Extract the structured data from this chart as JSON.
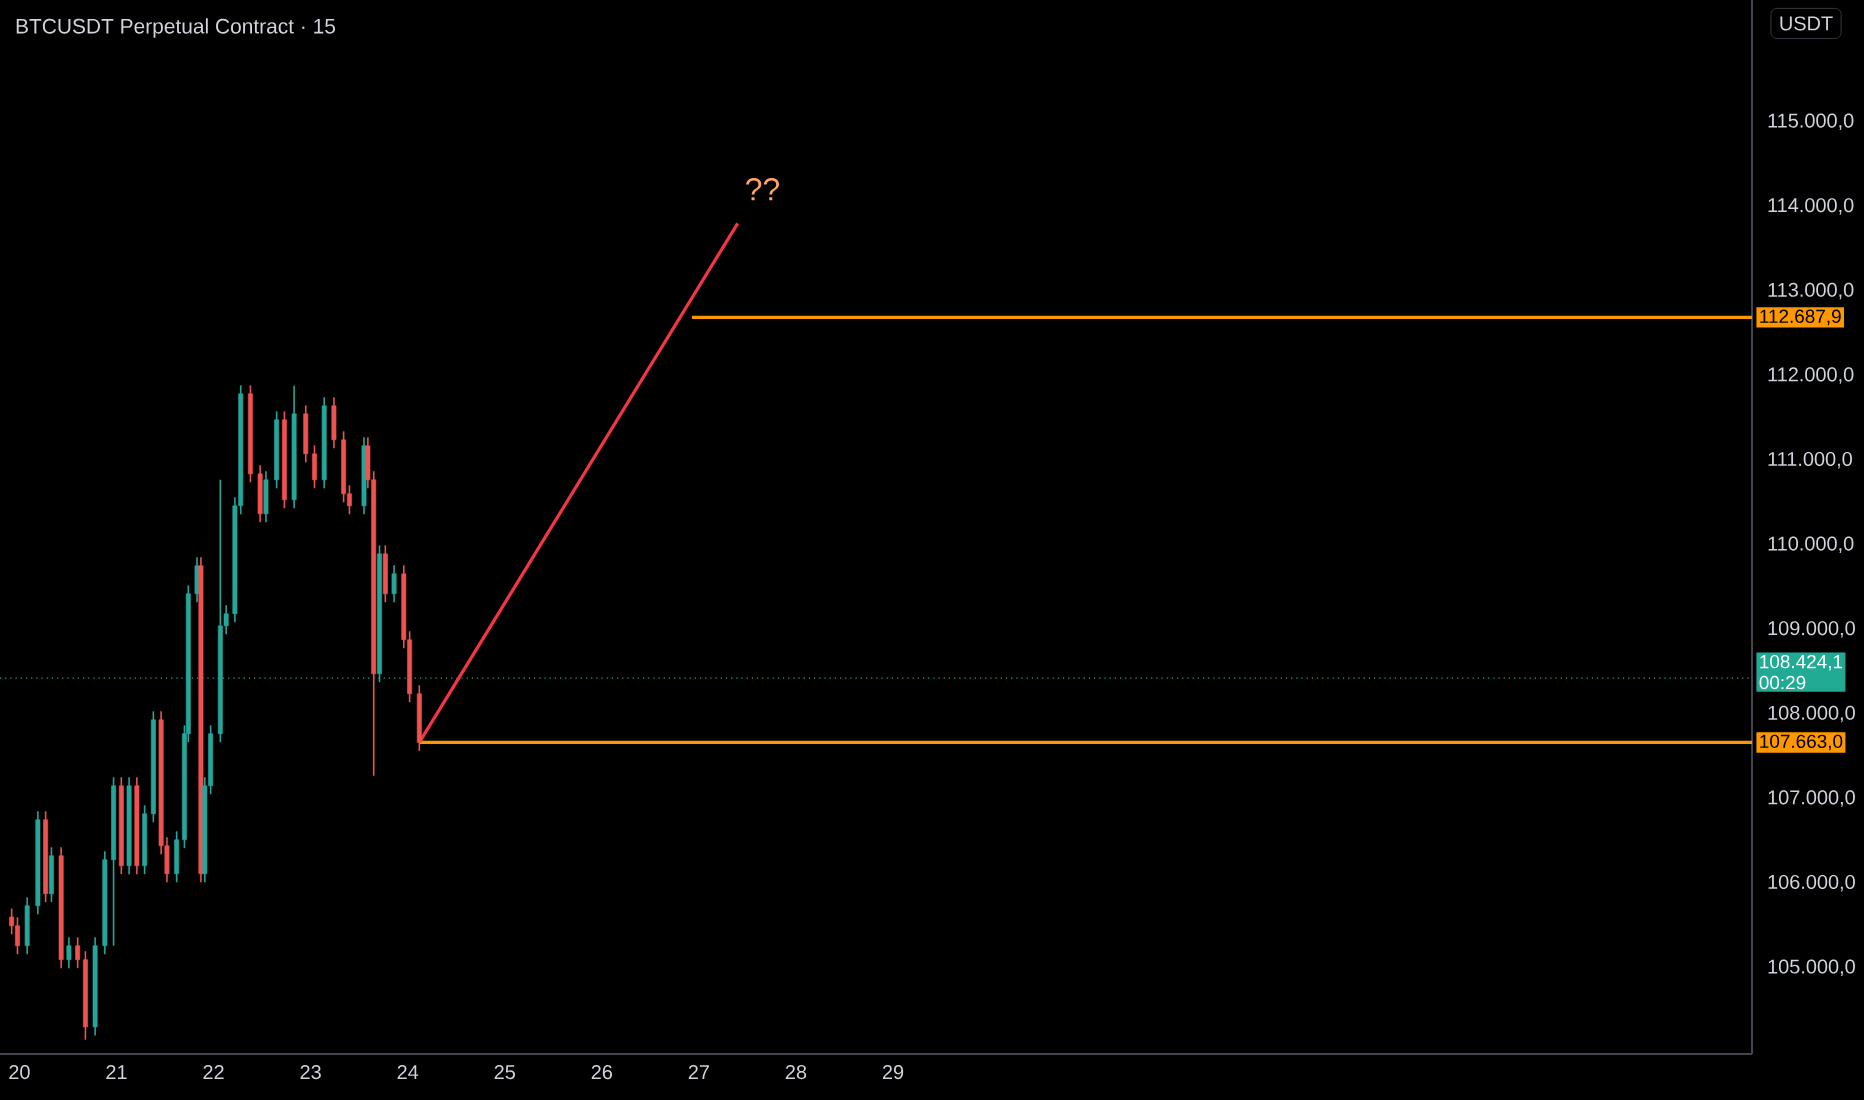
{
  "chart_data": {
    "type": "candlestick",
    "title": "BTCUSDT Perpetual Contract · 15",
    "ylabel": "USDT",
    "x": [
      19.92,
      19.98,
      20.08,
      20.19,
      20.27,
      20.33,
      20.43,
      20.51,
      20.6,
      20.68,
      20.78,
      20.88,
      20.97,
      21.05,
      21.13,
      21.21,
      21.29,
      21.38,
      21.46,
      21.52,
      21.62,
      21.7,
      21.74,
      21.83,
      21.87,
      21.91,
      21.97,
      22.07,
      22.13,
      22.22,
      22.28,
      22.38,
      22.48,
      22.54,
      22.65,
      22.73,
      22.83,
      22.95,
      23.04,
      23.14,
      23.24,
      23.34,
      23.4,
      23.55,
      23.59,
      23.65,
      23.71,
      23.77,
      23.86,
      23.96,
      24.02,
      24.12
    ],
    "ohlc": [
      [
        105600,
        105700,
        105396,
        105496
      ],
      [
        105496,
        105596,
        105160,
        105260
      ],
      [
        105260,
        105833,
        105160,
        105733
      ],
      [
        105733,
        106849,
        105633,
        106749
      ],
      [
        106749,
        106849,
        105775,
        105875
      ],
      [
        105875,
        106424,
        105775,
        106324
      ],
      [
        106324,
        106424,
        104995,
        105095
      ],
      [
        105095,
        105360,
        104995,
        105260
      ],
      [
        105260,
        105360,
        104995,
        105095
      ],
      [
        105095,
        105195,
        104149,
        104300
      ],
      [
        104300,
        105360,
        104200,
        105260
      ],
      [
        105260,
        106377,
        105160,
        106277
      ],
      [
        106277,
        107251,
        105260,
        107151
      ],
      [
        107151,
        107251,
        106106,
        106206
      ],
      [
        106206,
        107251,
        106106,
        107151
      ],
      [
        107151,
        107251,
        106106,
        106206
      ],
      [
        106206,
        106920,
        106106,
        106820
      ],
      [
        106820,
        108031,
        106720,
        107931
      ],
      [
        107931,
        108031,
        106342,
        106442
      ],
      [
        106442,
        106542,
        106011,
        106111
      ],
      [
        106111,
        106613,
        106011,
        106513
      ],
      [
        106513,
        107866,
        106413,
        107766
      ],
      [
        107766,
        109521,
        107666,
        109421
      ],
      [
        109421,
        109852,
        109321,
        109752
      ],
      [
        109752,
        109852,
        106011,
        106111
      ],
      [
        106111,
        107251,
        106011,
        107151
      ],
      [
        107151,
        107866,
        107051,
        107766
      ],
      [
        107766,
        110768,
        107666,
        109042
      ],
      [
        109042,
        109284,
        108942,
        109184
      ],
      [
        109184,
        110561,
        109084,
        110461
      ],
      [
        110461,
        111885,
        110361,
        111785
      ],
      [
        111785,
        111885,
        110739,
        110839
      ],
      [
        110839,
        110939,
        110266,
        110366
      ],
      [
        110366,
        110868,
        110266,
        110768
      ],
      [
        110768,
        111577,
        110668,
        111477
      ],
      [
        111477,
        111577,
        110432,
        110532
      ],
      [
        110532,
        111879,
        110432,
        111548
      ],
      [
        111548,
        111648,
        110975,
        111075
      ],
      [
        111075,
        111175,
        110668,
        110768
      ],
      [
        110768,
        111743,
        110668,
        111643
      ],
      [
        111643,
        111743,
        111141,
        111241
      ],
      [
        111241,
        111341,
        110503,
        110603
      ],
      [
        110603,
        110703,
        110361,
        110461
      ],
      [
        110461,
        111270,
        110361,
        111170
      ],
      [
        111170,
        111270,
        110668,
        110768
      ],
      [
        110768,
        110868,
        107270,
        108475
      ],
      [
        108475,
        109993,
        108375,
        109893
      ],
      [
        109893,
        109993,
        109321,
        109421
      ],
      [
        109421,
        109757,
        109321,
        109657
      ],
      [
        109657,
        109757,
        108777,
        108877
      ],
      [
        108877,
        108977,
        108139,
        108239
      ],
      [
        108239,
        108339,
        107563,
        107663
      ]
    ],
    "series": [
      {
        "type": "line",
        "color": "#f23645",
        "x": [
          24.12,
          27.4
        ],
        "values": [
          107663,
          113800
        ]
      },
      {
        "type": "line",
        "color": "#ff9800",
        "x": [
          26.93,
          37.85
        ],
        "values": [
          112687.9,
          112687.9
        ],
        "value_labels": [
          null,
          "112.687,9"
        ]
      },
      {
        "type": "line",
        "color": "#ff9800",
        "x": [
          24.12,
          37.85
        ],
        "values": [
          107663,
          107663
        ],
        "value_labels": [
          null,
          "107.663,0"
        ]
      }
    ],
    "ref_lines": [
      {
        "axis": "y",
        "value": 108424.1,
        "label": "108.424,1",
        "color": "#22ab94",
        "line_style": "dotted"
      }
    ],
    "annotations": [
      "??",
      "00:29"
    ],
    "xlim": [
      19.8,
      37.85
    ],
    "ylim": [
      103980,
      116440
    ],
    "xticks": [
      20,
      21,
      22,
      23,
      24,
      25,
      26,
      27,
      28,
      29
    ],
    "yticks": [
      {
        "value": 105000,
        "label": "105.000,0"
      },
      {
        "value": 106000,
        "label": "106.000,0"
      },
      {
        "value": 107000,
        "label": "107.000,0"
      },
      {
        "value": 108000,
        "label": "108.000,0"
      },
      {
        "value": 109000,
        "label": "109.000,0"
      },
      {
        "value": 110000,
        "label": "110.000,0"
      },
      {
        "value": 111000,
        "label": "111.000,0"
      },
      {
        "value": 112000,
        "label": "112.000,0"
      },
      {
        "value": 113000,
        "label": "113.000,0"
      },
      {
        "value": 114000,
        "label": "114.000,0"
      },
      {
        "value": 115000,
        "label": "115.000,0"
      }
    ],
    "grid": false
  }
}
